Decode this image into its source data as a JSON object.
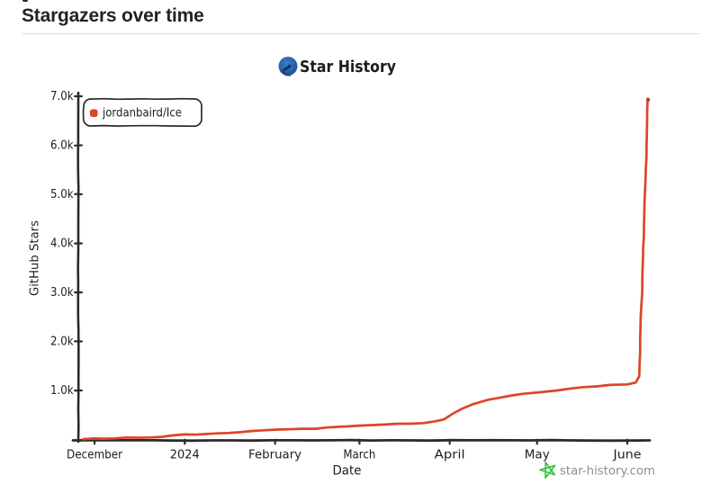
{
  "header": {
    "title": "Stargazers over time"
  },
  "chart": {
    "title_label": "Star History",
    "logo_icon": "star-history-logo",
    "legend": [
      {
        "label": "jordanbaird/Ice",
        "marker_color": "#dd4528"
      }
    ],
    "watermark": {
      "icon": "green-star-icon",
      "text": "star-history.com",
      "icon_color": "#3dc23d",
      "text_color": "#8c8c8c"
    },
    "ink_color": "#2b2b2b"
  },
  "chart_data": {
    "type": "line",
    "title": "Star History",
    "xlabel": "Date",
    "ylabel": "GitHub Stars",
    "grid": false,
    "legend_position": "top-left",
    "x_range": [
      "2023-11-27",
      "2024-06-09"
    ],
    "y_range": [
      0,
      7100
    ],
    "x_ticks": [
      {
        "date": "2023-12-01",
        "label": "December"
      },
      {
        "date": "2024-01-01",
        "label": "2024"
      },
      {
        "date": "2024-02-01",
        "label": "February"
      },
      {
        "date": "2024-03-01",
        "label": "March"
      },
      {
        "date": "2024-04-01",
        "label": "April"
      },
      {
        "date": "2024-05-01",
        "label": "May"
      },
      {
        "date": "2024-06-01",
        "label": "June"
      }
    ],
    "y_ticks": [
      {
        "value": 1000,
        "label": "1.0k"
      },
      {
        "value": 2000,
        "label": "2.0k"
      },
      {
        "value": 3000,
        "label": "3.0k"
      },
      {
        "value": 4000,
        "label": "4.0k"
      },
      {
        "value": 5000,
        "label": "5.0k"
      },
      {
        "value": 6000,
        "label": "6.0k"
      },
      {
        "value": 7000,
        "label": "7.0k"
      }
    ],
    "series": [
      {
        "name": "jordanbaird/Ice",
        "color": "#dd4528",
        "points": [
          [
            "2023-11-27",
            3
          ],
          [
            "2023-12-08",
            22
          ],
          [
            "2023-12-20",
            50
          ],
          [
            "2024-01-01",
            93
          ],
          [
            "2024-01-16",
            138
          ],
          [
            "2024-02-01",
            185
          ],
          [
            "2024-02-15",
            228
          ],
          [
            "2024-03-01",
            270
          ],
          [
            "2024-03-14",
            305
          ],
          [
            "2024-03-23",
            335
          ],
          [
            "2024-03-27",
            370
          ],
          [
            "2024-03-30",
            412
          ],
          [
            "2024-04-02",
            520
          ],
          [
            "2024-04-05",
            612
          ],
          [
            "2024-04-09",
            719
          ],
          [
            "2024-04-14",
            800
          ],
          [
            "2024-04-19",
            863
          ],
          [
            "2024-04-26",
            933
          ],
          [
            "2024-05-02",
            966
          ],
          [
            "2024-05-08",
            1000
          ],
          [
            "2024-05-17",
            1060
          ],
          [
            "2024-05-26",
            1100
          ],
          [
            "2024-06-01",
            1128
          ],
          [
            "2024-06-04",
            1158
          ],
          [
            "2024-06-05",
            1290
          ],
          [
            "2024-06-06",
            3000
          ],
          [
            "2024-06-07",
            4800
          ],
          [
            "2024-06-08",
            6950
          ]
        ]
      }
    ]
  }
}
